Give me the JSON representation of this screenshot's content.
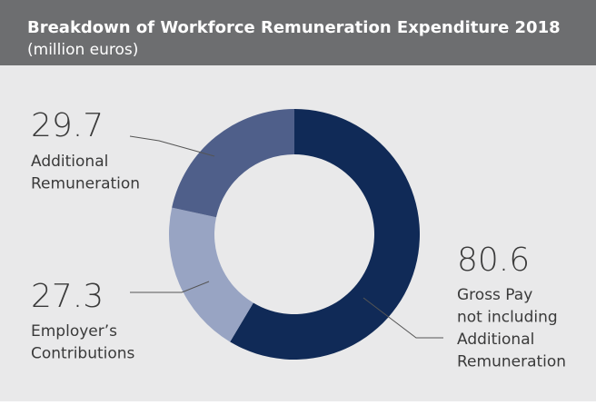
{
  "chart_data": {
    "type": "donut",
    "title": "Breakdown of Workforce Remuneration Expenditure 2018",
    "subtitle": "(million euros)",
    "categories": [
      "Gross Pay\nnot including\nAdditional\nRemuneration",
      "Employer’s\nContributions",
      "Additional\nRemuneration"
    ],
    "values": [
      80.6,
      27.3,
      29.7
    ],
    "colors": [
      "#102a57",
      "#98a4c3",
      "#4f5f8a"
    ]
  }
}
